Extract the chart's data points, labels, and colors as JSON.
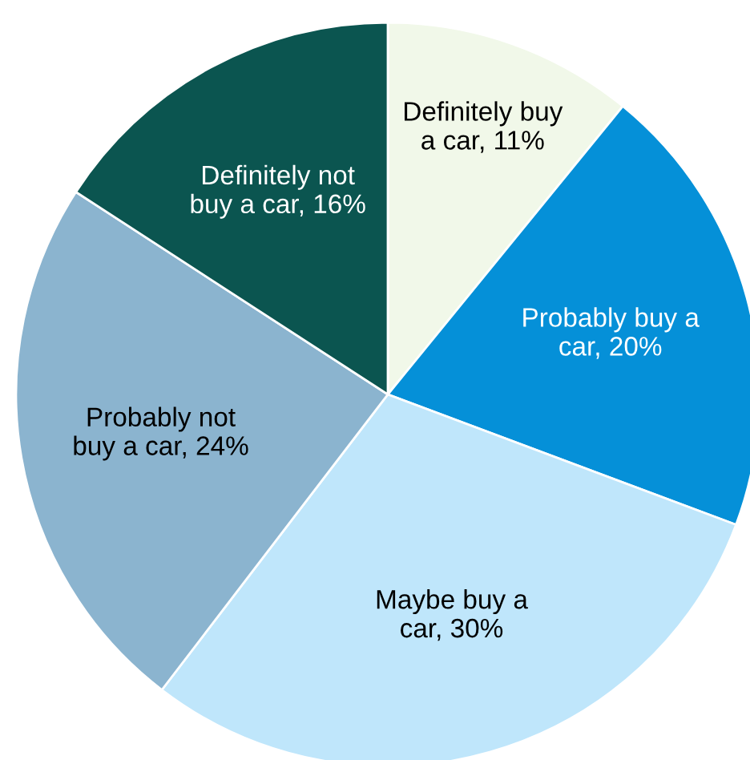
{
  "chart_data": {
    "type": "pie",
    "categories": [
      "Definitely buy a car, 11%",
      "Probably buy a car, 20%",
      "Maybe buy a car, 30%",
      "Probably not buy a car, 24%",
      "Definitely not buy a car, 16%"
    ],
    "values": [
      11,
      20,
      30,
      24,
      16
    ],
    "colors": [
      "#f1f8e9",
      "#0590d8",
      "#bfe6fb",
      "#8bb4cf",
      "#0b5550"
    ]
  }
}
